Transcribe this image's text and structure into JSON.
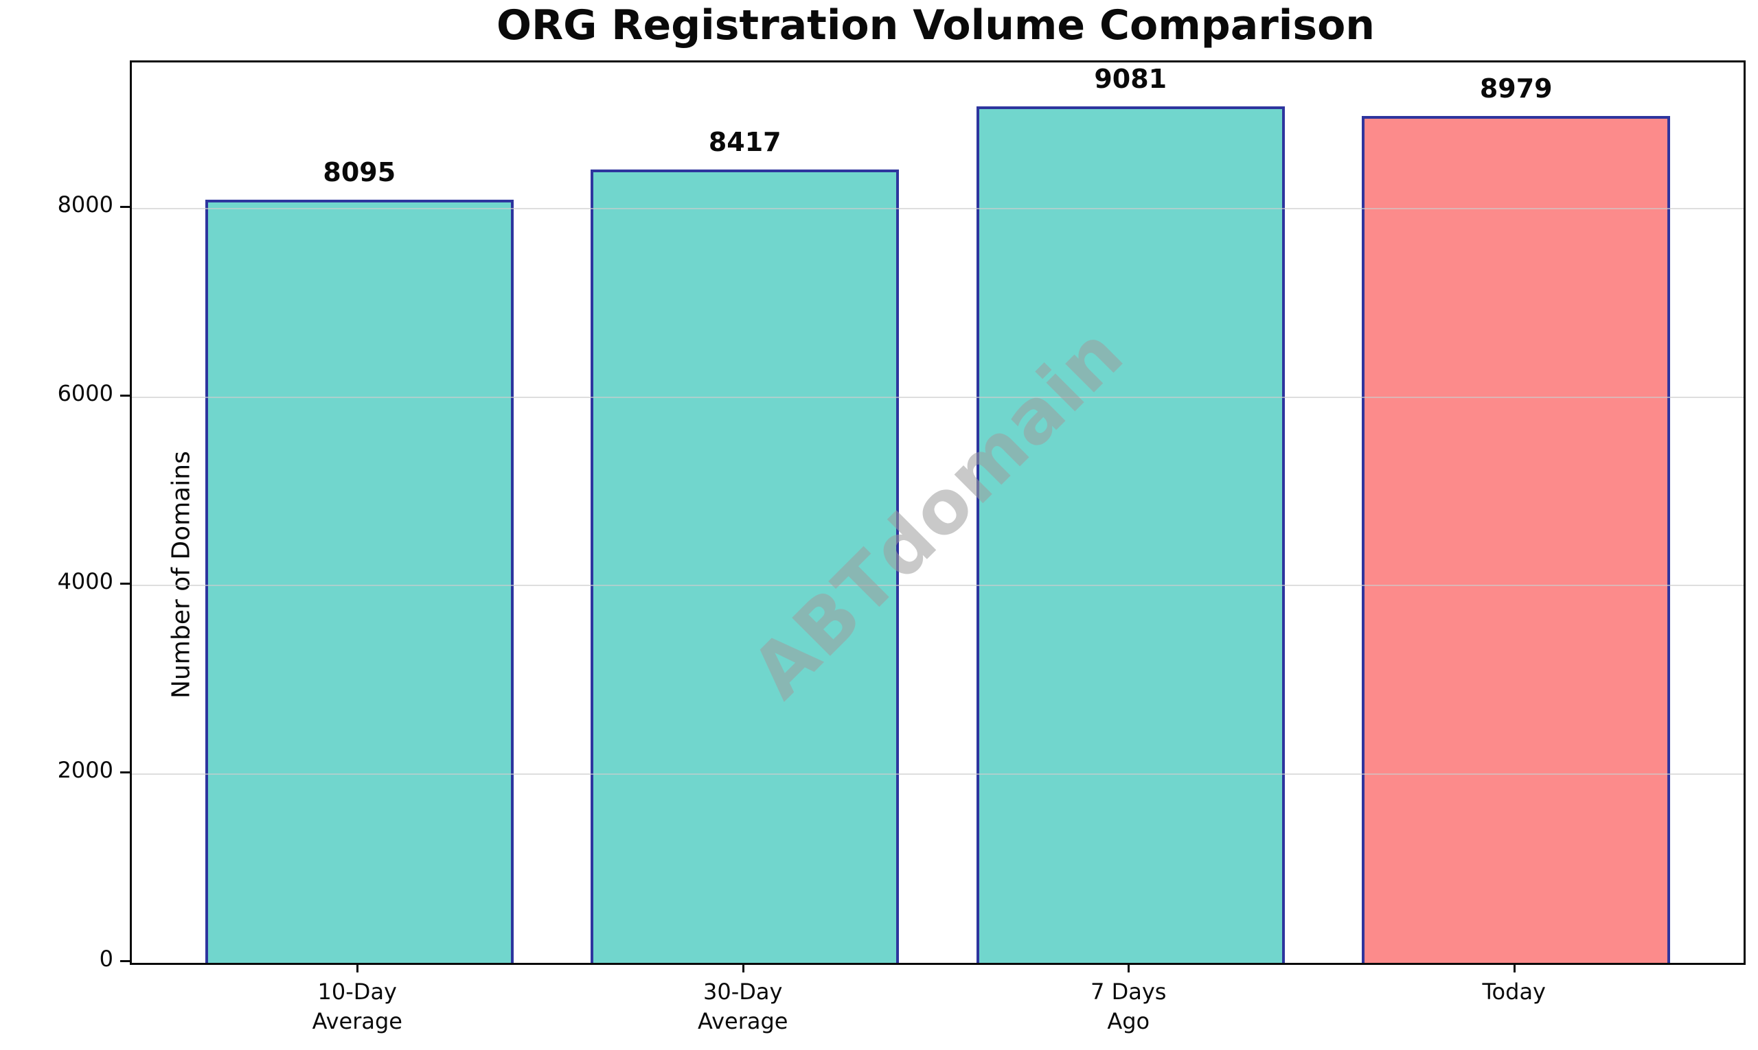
{
  "chart_data": {
    "type": "bar",
    "title": "ORG Registration Volume Comparison",
    "ylabel": "Number of Domains",
    "xlabel": "",
    "categories": [
      "10-Day\nAverage",
      "30-Day\nAverage",
      "7 Days\nAgo",
      "Today"
    ],
    "values": [
      8095,
      8417,
      9081,
      8979
    ],
    "bar_labels": [
      "8095",
      "8417",
      "9081",
      "8979"
    ],
    "ytick_values": [
      0,
      2000,
      4000,
      6000,
      8000
    ],
    "ytick_labels": [
      "0",
      "2000",
      "4000",
      "6000",
      "8000"
    ],
    "ylim": [
      0,
      9550
    ],
    "grid": true,
    "legend": false,
    "watermark": "ABTdomain",
    "colors": {
      "bar_fill_default": "#71D6CD",
      "bar_fill_highlight": "#FC8B8B",
      "bar_fills": [
        "#71D6CD",
        "#71D6CD",
        "#71D6CD",
        "#FC8B8B"
      ],
      "bar_edge": "#2E359E",
      "gridline": "#CDCDCD",
      "axis": "#0A0A0A",
      "watermark_gray": "#9E9E9E"
    }
  }
}
